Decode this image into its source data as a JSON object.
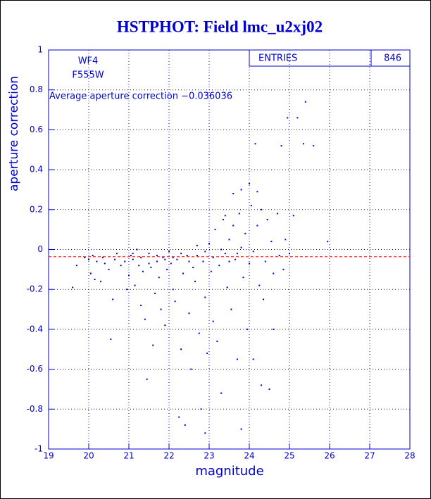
{
  "chart_data": {
    "type": "scatter",
    "title": "HSTPHOT: Field lmc_u2xj02",
    "xlabel": "magnitude",
    "ylabel": "aperture correction",
    "annotations": [
      "WF4",
      "F555W"
    ],
    "average": {
      "value": -0.036036,
      "label": "Average aperture correction −0.036036"
    },
    "stats": {
      "label": "ENTRIES",
      "value": 846
    },
    "color": "#0000cc",
    "average_color": "#ff0000",
    "grid": true,
    "xlim": [
      19,
      28
    ],
    "ylim": [
      -1,
      1
    ],
    "xticks": [
      19,
      20,
      21,
      22,
      23,
      24,
      25,
      26,
      27,
      28
    ],
    "yticks": [
      -1,
      -0.8,
      -0.6,
      -0.4,
      -0.2,
      0,
      0.2,
      0.4,
      0.6,
      0.8,
      1
    ],
    "x": [
      19.6,
      19.7,
      19.9,
      20.0,
      20.05,
      20.1,
      20.15,
      20.2,
      20.3,
      20.35,
      20.4,
      20.5,
      20.55,
      20.6,
      20.65,
      20.7,
      20.8,
      20.9,
      20.95,
      21.0,
      21.05,
      21.1,
      21.15,
      21.2,
      21.25,
      21.3,
      21.35,
      21.4,
      21.45,
      21.5,
      21.55,
      21.6,
      21.65,
      21.7,
      21.75,
      21.8,
      21.85,
      21.9,
      21.95,
      22.0,
      22.05,
      22.1,
      22.15,
      22.2,
      22.25,
      22.3,
      22.35,
      22.4,
      22.45,
      22.5,
      22.55,
      22.6,
      22.65,
      22.7,
      22.75,
      22.8,
      22.85,
      22.9,
      22.95,
      23.0,
      23.05,
      23.1,
      23.15,
      23.2,
      23.25,
      23.3,
      23.35,
      23.4,
      23.45,
      23.5,
      23.55,
      23.6,
      23.65,
      23.7,
      23.75,
      23.8,
      23.85,
      23.9,
      23.95,
      24.0,
      24.05,
      24.1,
      24.15,
      24.2,
      24.25,
      24.3,
      24.35,
      24.4,
      24.45,
      24.5,
      24.55,
      24.6,
      24.7,
      24.75,
      24.8,
      24.85,
      24.9,
      24.95,
      25.0,
      25.1,
      25.2,
      25.35,
      25.4,
      25.6,
      25.95,
      22.1,
      22.3,
      22.5,
      22.7,
      22.9,
      23.1,
      23.3,
      23.5,
      23.7,
      21.9,
      21.7,
      21.5,
      21.3,
      21.1,
      23.6,
      23.8,
      24.0,
      24.2,
      23.4,
      24.1,
      24.6,
      24.3,
      23.8,
      22.9
    ],
    "y": [
      -0.19,
      -0.08,
      -0.04,
      -0.05,
      -0.12,
      -0.03,
      -0.15,
      -0.06,
      -0.16,
      -0.04,
      -0.07,
      -0.1,
      -0.45,
      -0.25,
      -0.05,
      -0.02,
      -0.08,
      -0.06,
      -0.2,
      -0.13,
      -0.03,
      -0.05,
      -0.18,
      0.0,
      -0.08,
      -0.28,
      -0.11,
      -0.35,
      -0.65,
      -0.02,
      -0.09,
      -0.48,
      -0.22,
      -0.06,
      -0.14,
      -0.3,
      -0.04,
      -0.38,
      -0.1,
      -0.01,
      -0.07,
      -0.2,
      -0.26,
      -0.05,
      -0.84,
      -0.5,
      -0.12,
      -0.88,
      -0.03,
      -0.32,
      -0.6,
      -0.09,
      -0.16,
      0.02,
      -0.42,
      -0.8,
      -0.06,
      -0.24,
      -0.52,
      0.03,
      -0.11,
      -0.36,
      0.1,
      -0.46,
      -0.08,
      -0.72,
      0.15,
      -0.02,
      -0.19,
      0.05,
      -0.3,
      0.12,
      -0.05,
      -0.55,
      0.18,
      0.01,
      -0.14,
      0.08,
      -0.4,
      -0.07,
      0.22,
      -0.01,
      0.53,
      0.12,
      -0.18,
      0.2,
      -0.25,
      -0.06,
      0.15,
      -0.7,
      0.04,
      -0.12,
      0.18,
      -0.03,
      0.52,
      -0.1,
      0.05,
      0.66,
      -0.02,
      0.17,
      0.66,
      0.53,
      0.74,
      0.52,
      0.04,
      -0.04,
      -0.02,
      -0.06,
      -0.03,
      -0.01,
      -0.04,
      0.0,
      -0.06,
      -0.02,
      -0.05,
      -0.03,
      -0.07,
      -0.04,
      -0.02,
      0.28,
      0.3,
      0.33,
      0.29,
      0.17,
      -0.55,
      -0.4,
      -0.68,
      -0.9,
      -0.92
    ]
  }
}
